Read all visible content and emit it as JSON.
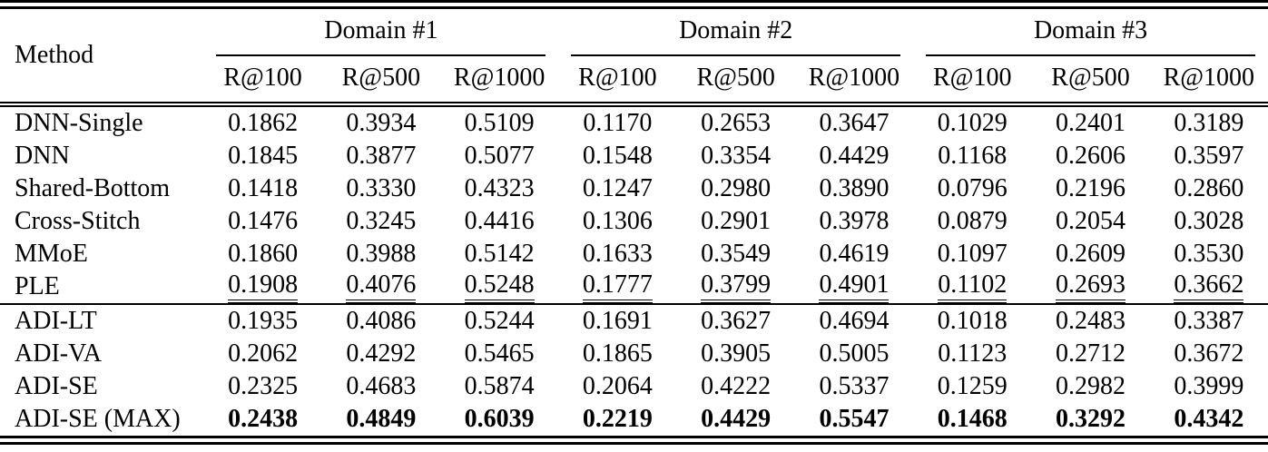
{
  "colors": {
    "text": "#000000",
    "background": "#ffffff",
    "rule": "#000000"
  },
  "table": {
    "method_header": "Method",
    "groups": [
      {
        "label": "Domain #1"
      },
      {
        "label": "Domain #2"
      },
      {
        "label": "Domain #3"
      }
    ],
    "metric_headers": [
      "R@100",
      "R@500",
      "R@1000",
      "R@100",
      "R@500",
      "R@1000",
      "R@100",
      "R@500",
      "R@1000"
    ],
    "rows": [
      {
        "method": "DNN-Single",
        "values": [
          "0.1862",
          "0.3934",
          "0.5109",
          "0.1170",
          "0.2653",
          "0.3647",
          "0.1029",
          "0.2401",
          "0.3189"
        ]
      },
      {
        "method": "DNN",
        "values": [
          "0.1845",
          "0.3877",
          "0.5077",
          "0.1548",
          "0.3354",
          "0.4429",
          "0.1168",
          "0.2606",
          "0.3597"
        ]
      },
      {
        "method": "Shared-Bottom",
        "values": [
          "0.1418",
          "0.3330",
          "0.4323",
          "0.1247",
          "0.2980",
          "0.3890",
          "0.0796",
          "0.2196",
          "0.2860"
        ]
      },
      {
        "method": "Cross-Stitch",
        "values": [
          "0.1476",
          "0.3245",
          "0.4416",
          "0.1306",
          "0.2901",
          "0.3978",
          "0.0879",
          "0.2054",
          "0.3028"
        ]
      },
      {
        "method": "MMoE",
        "values": [
          "0.1860",
          "0.3988",
          "0.5142",
          "0.1633",
          "0.3549",
          "0.4619",
          "0.1097",
          "0.2609",
          "0.3530"
        ]
      },
      {
        "method": "PLE",
        "values": [
          "0.1908",
          "0.4076",
          "0.5248",
          "0.1777",
          "0.3799",
          "0.4901",
          "0.1102",
          "0.2693",
          "0.3662"
        ],
        "underline_values": true
      },
      {
        "method": "ADI-LT",
        "values": [
          "0.1935",
          "0.4086",
          "0.5244",
          "0.1691",
          "0.3627",
          "0.4694",
          "0.1018",
          "0.2483",
          "0.3387"
        ],
        "section_start": true
      },
      {
        "method": "ADI-VA",
        "values": [
          "0.2062",
          "0.4292",
          "0.5465",
          "0.1865",
          "0.3905",
          "0.5005",
          "0.1123",
          "0.2712",
          "0.3672"
        ]
      },
      {
        "method": "ADI-SE",
        "values": [
          "0.2325",
          "0.4683",
          "0.5874",
          "0.2064",
          "0.4222",
          "0.5337",
          "0.1259",
          "0.2982",
          "0.3999"
        ]
      },
      {
        "method": "ADI-SE (MAX)",
        "values": [
          "0.2438",
          "0.4849",
          "0.6039",
          "0.2219",
          "0.4429",
          "0.5547",
          "0.1468",
          "0.3292",
          "0.4342"
        ],
        "bold_values": true
      }
    ]
  }
}
